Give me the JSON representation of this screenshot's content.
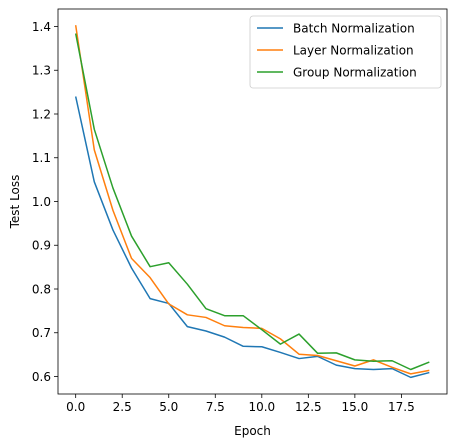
{
  "chart_data": {
    "type": "line",
    "xlabel": "Epoch",
    "ylabel": "Test Loss",
    "xlim": [
      -0.95,
      19.95
    ],
    "ylim": [
      0.56,
      1.44
    ],
    "xticks": [
      0.0,
      2.5,
      5.0,
      7.5,
      10.0,
      12.5,
      15.0,
      17.5
    ],
    "xtick_labels": [
      "0.0",
      "2.5",
      "5.0",
      "7.5",
      "10.0",
      "12.5",
      "15.0",
      "17.5"
    ],
    "yticks": [
      0.6,
      0.7,
      0.8,
      0.9,
      1.0,
      1.1,
      1.2,
      1.3,
      1.4
    ],
    "ytick_labels": [
      "0.6",
      "0.7",
      "0.8",
      "0.9",
      "1.0",
      "1.1",
      "1.2",
      "1.3",
      "1.4"
    ],
    "grid": false,
    "legend_position": "top-right",
    "x": [
      0,
      1,
      2,
      3,
      4,
      5,
      6,
      7,
      8,
      9,
      10,
      11,
      12,
      13,
      14,
      15,
      16,
      17,
      18,
      19
    ],
    "series": [
      {
        "name": "Batch Normalization",
        "color": "#1f77b4",
        "values": [
          1.24,
          1.045,
          0.935,
          0.848,
          0.778,
          0.767,
          0.714,
          0.704,
          0.69,
          0.669,
          0.668,
          0.655,
          0.641,
          0.646,
          0.626,
          0.618,
          0.616,
          0.618,
          0.598,
          0.609
        ]
      },
      {
        "name": "Layer Normalization",
        "color": "#ff7f0e",
        "values": [
          1.403,
          1.118,
          0.98,
          0.87,
          0.826,
          0.766,
          0.741,
          0.735,
          0.716,
          0.712,
          0.71,
          0.686,
          0.651,
          0.648,
          0.636,
          0.624,
          0.638,
          0.621,
          0.606,
          0.614
        ]
      },
      {
        "name": "Group Normalization",
        "color": "#2ca02c",
        "values": [
          1.384,
          1.165,
          1.031,
          0.921,
          0.851,
          0.86,
          0.811,
          0.755,
          0.739,
          0.739,
          0.707,
          0.674,
          0.697,
          0.653,
          0.654,
          0.638,
          0.635,
          0.636,
          0.616,
          0.633
        ]
      }
    ]
  }
}
